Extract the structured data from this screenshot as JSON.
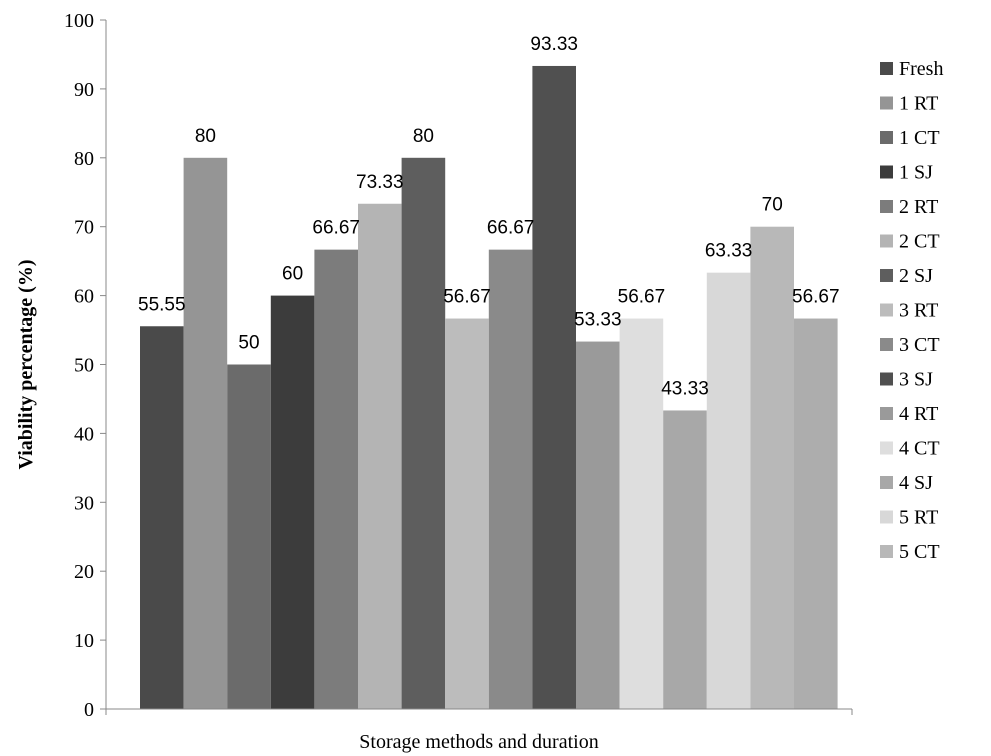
{
  "chart_data": {
    "type": "bar",
    "title": "",
    "xlabel": "Storage methods and duration",
    "ylabel": "Viability percentage (%)",
    "ylim": [
      0,
      100
    ],
    "yticks": [
      0,
      10,
      20,
      30,
      40,
      50,
      60,
      70,
      80,
      90,
      100
    ],
    "grid": false,
    "legend_position": "right",
    "series": [
      {
        "name": "Fresh",
        "value": 55.55,
        "label": "55.55",
        "color": "#4a4a4a"
      },
      {
        "name": "1 RT",
        "value": 80,
        "label": "80",
        "color": "#959595"
      },
      {
        "name": "1 CT",
        "value": 50,
        "label": "50",
        "color": "#6b6b6b"
      },
      {
        "name": "1 SJ",
        "value": 60,
        "label": "60",
        "color": "#3c3c3c"
      },
      {
        "name": "2 RT",
        "value": 66.67,
        "label": "66.67",
        "color": "#7c7c7c"
      },
      {
        "name": "2 CT",
        "value": 73.33,
        "label": "73.33",
        "color": "#b4b4b4"
      },
      {
        "name": "2 SJ",
        "value": 80,
        "label": "80",
        "color": "#5e5e5e"
      },
      {
        "name": "3 RT",
        "value": 56.67,
        "label": "56.67",
        "color": "#bcbcbc"
      },
      {
        "name": "3 CT",
        "value": 66.67,
        "label": "66.67",
        "color": "#8a8a8a"
      },
      {
        "name": "3 SJ",
        "value": 93.33,
        "label": "93.33",
        "color": "#505050"
      },
      {
        "name": "4 RT",
        "value": 53.33,
        "label": "53.33",
        "color": "#9a9a9a"
      },
      {
        "name": "4 CT",
        "value": 56.67,
        "label": "56.67",
        "color": "#dedede"
      },
      {
        "name": "4 SJ",
        "value": 43.33,
        "label": "43.33",
        "color": "#a8a8a8"
      },
      {
        "name": "5 RT",
        "value": 63.33,
        "label": "63.33",
        "color": "#d8d8d8"
      },
      {
        "name": "5 CT",
        "value": 70,
        "label": "70",
        "color": "#b8b8b8"
      },
      {
        "name": "",
        "value": 56.67,
        "label": "56.67",
        "color": "#adadad"
      }
    ]
  }
}
